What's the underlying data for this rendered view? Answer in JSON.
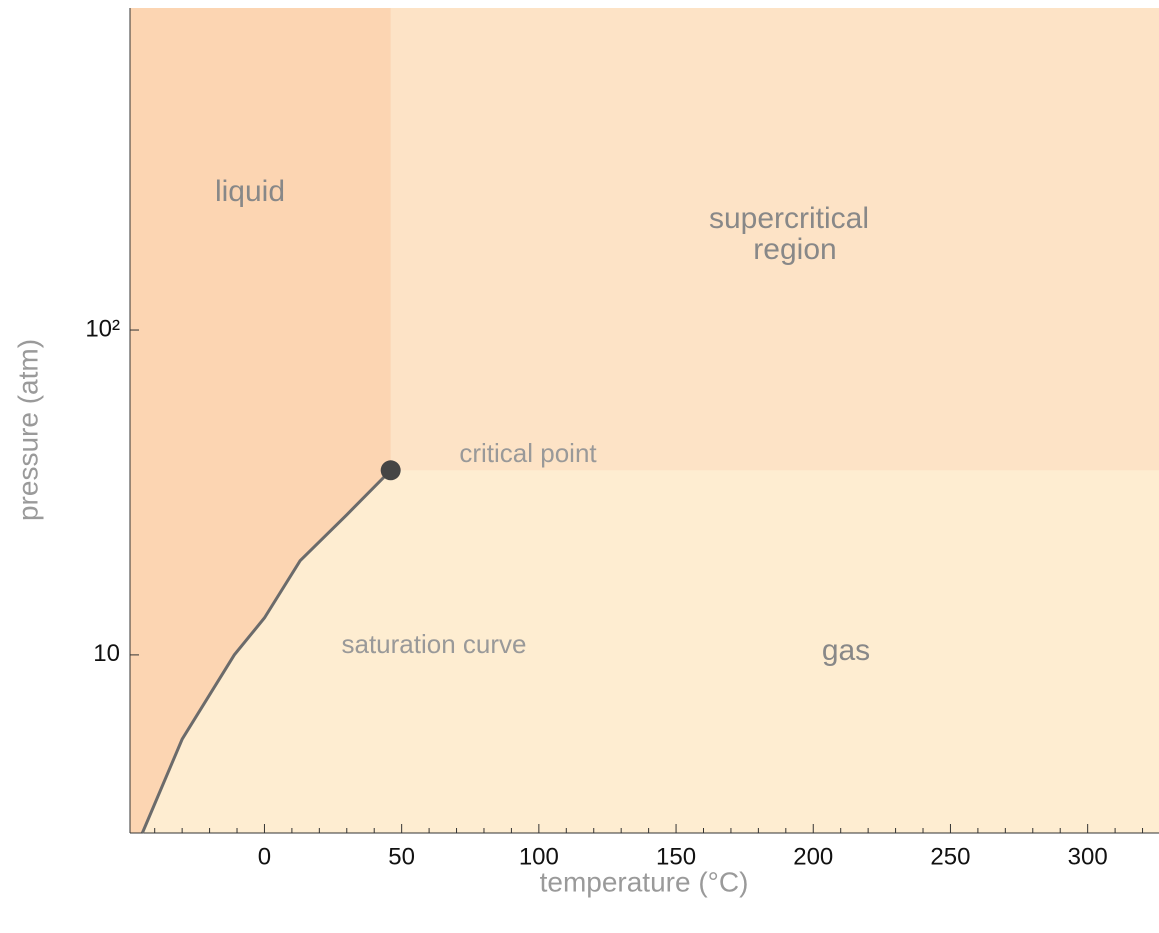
{
  "chart_data": {
    "type": "phase",
    "x_label": "temperature  (°C)",
    "y_label": "pressure  (atm)",
    "xlim": [
      -49,
      326
    ],
    "ylim": [
      2.83,
      980
    ],
    "log_y": true,
    "xticks": [
      0,
      50,
      100,
      150,
      200,
      250,
      300
    ],
    "xticks_minor": [
      -40,
      -30,
      -20,
      -10,
      10,
      20,
      30,
      40,
      60,
      70,
      80,
      90,
      110,
      120,
      130,
      140,
      160,
      170,
      180,
      190,
      210,
      220,
      230,
      240,
      260,
      270,
      280,
      290,
      310,
      320
    ],
    "yticks": [
      10,
      {
        "value": 100,
        "label": "10²"
      }
    ],
    "series": [
      {
        "name": "saturation curve",
        "color": "#6b6b6b",
        "x": [
          -44.5,
          -30,
          -11,
          0,
          13,
          30,
          46
        ],
        "values": [
          2.83,
          5.5,
          10,
          13,
          19.5,
          27,
          37
        ]
      }
    ],
    "critical_point": {
      "x": 46,
      "y": 37,
      "label": "critical point",
      "color": "#454545"
    },
    "regions": {
      "liquid": {
        "label": "liquid",
        "color": "#fcd5b2"
      },
      "supercritical": {
        "label": [
          "supercritical",
          "region"
        ],
        "color": "#fde3c6"
      },
      "gas": {
        "label": "gas",
        "color": "#feedd1"
      }
    }
  }
}
